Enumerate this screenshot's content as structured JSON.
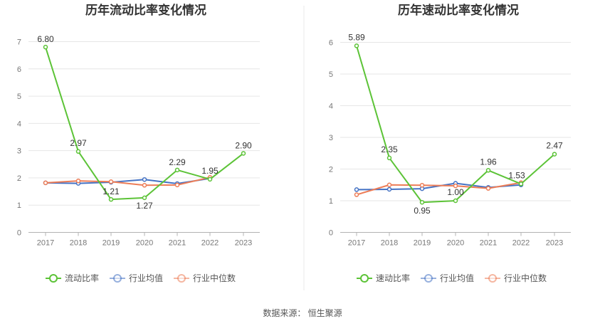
{
  "colors": {
    "primary": "#5cc337",
    "industry_avg": "#4472c4",
    "industry_median": "#ed7d57",
    "grid": "#e6e6e6",
    "axis": "#b3b3b3",
    "divider": "#e8e8e8"
  },
  "chart_data": [
    {
      "type": "line",
      "title": "历年流动比率变化情况",
      "categories": [
        "2017",
        "2018",
        "2019",
        "2020",
        "2021",
        "2022",
        "2023"
      ],
      "ylim": [
        0,
        7
      ],
      "yticks": [
        "0",
        "1",
        "2",
        "3",
        "4",
        "5",
        "6",
        "7"
      ],
      "grid": true,
      "legend_position": "bottom",
      "series": [
        {
          "name": "流动比率",
          "color": "#5cc337",
          "values": [
            6.8,
            2.97,
            1.21,
            1.27,
            2.29,
            1.95,
            2.9
          ],
          "labels": [
            "6.80",
            "2.97",
            "1.21",
            "1.27",
            "2.29",
            "1.95",
            "2.90"
          ]
        },
        {
          "name": "行业均值",
          "color": "#4472c4",
          "values": [
            1.82,
            1.8,
            1.84,
            1.94,
            1.79,
            1.98,
            null
          ]
        },
        {
          "name": "行业中位数",
          "color": "#ed7d57",
          "values": [
            1.82,
            1.89,
            1.86,
            1.73,
            1.74,
            2.02,
            null
          ]
        }
      ]
    },
    {
      "type": "line",
      "title": "历年速动比率变化情况",
      "categories": [
        "2017",
        "2018",
        "2019",
        "2020",
        "2021",
        "2022",
        "2023"
      ],
      "ylim": [
        0,
        6
      ],
      "yticks": [
        "0",
        "1",
        "2",
        "3",
        "4",
        "5",
        "6"
      ],
      "grid": true,
      "legend_position": "bottom",
      "series": [
        {
          "name": "速动比率",
          "color": "#5cc337",
          "values": [
            5.89,
            2.35,
            0.95,
            1.0,
            1.96,
            1.53,
            2.47
          ],
          "labels": [
            "5.89",
            "2.35",
            "0.95",
            "1.00",
            "1.96",
            "1.53",
            "2.47"
          ]
        },
        {
          "name": "行业均值",
          "color": "#4472c4",
          "values": [
            1.35,
            1.36,
            1.38,
            1.55,
            1.42,
            1.5,
            null
          ]
        },
        {
          "name": "行业中位数",
          "color": "#ed7d57",
          "values": [
            1.19,
            1.5,
            1.49,
            1.47,
            1.39,
            1.57,
            null
          ]
        }
      ]
    }
  ],
  "footer": {
    "source": "数据来源：  恒生聚源"
  }
}
